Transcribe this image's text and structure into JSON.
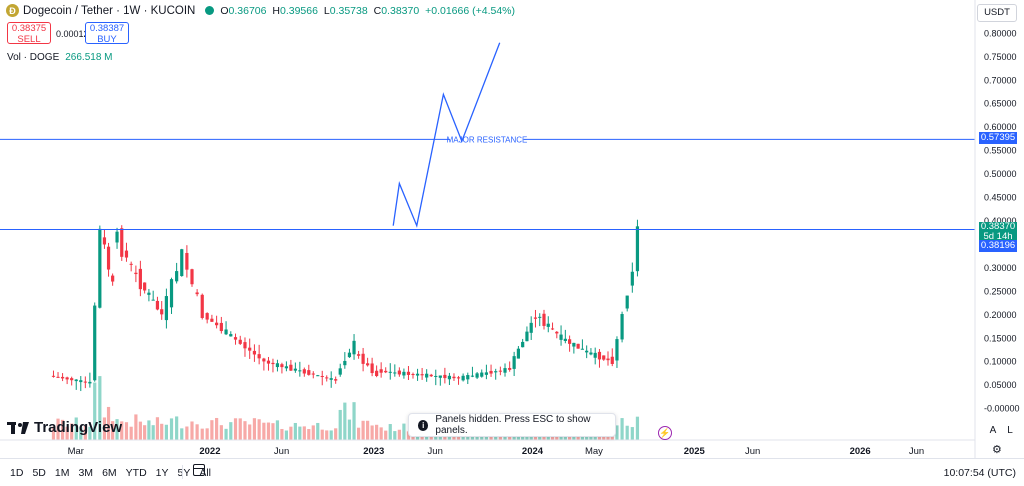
{
  "header": {
    "symbol": "Dogecoin / Tether · 1W · KUCOIN",
    "coin_letter": "Ð",
    "ohlc": [
      {
        "label": "O",
        "value": "0.36706"
      },
      {
        "label": "H",
        "value": "0.39566"
      },
      {
        "label": "L",
        "value": "0.35738"
      },
      {
        "label": "C",
        "value": "0.38370"
      }
    ],
    "change": "+0.01666 (+4.54%)"
  },
  "trade": {
    "sell_price": "0.38375",
    "sell_label": "SELL",
    "spread": "0.00012",
    "buy_price": "0.38387",
    "buy_label": "BUY"
  },
  "volume": {
    "label": "Vol · DOGE",
    "value": "266.518 M"
  },
  "currency_button": "USDT",
  "annotation": "MAJOR RESISTANCE",
  "price_tags": {
    "resistance": "0.57395",
    "last_price": "0.38370",
    "countdown": "5d 14h",
    "buy_price": "0.38196"
  },
  "logo": "TradingView",
  "toast": "Panels hidden. Press ESC to show panels.",
  "scale_buttons": {
    "auto": "A",
    "log": "L"
  },
  "timeframes": [
    "1D",
    "5D",
    "1M",
    "3M",
    "6M",
    "YTD",
    "1Y",
    "5Y",
    "All"
  ],
  "clock": "10:07:54 (UTC)",
  "colors": {
    "up": "#089981",
    "down": "#f23645",
    "line": "#2962ff",
    "vol_up": "#8fd6c9",
    "vol_down": "#f7a9a7"
  },
  "chart_data": {
    "type": "candlestick",
    "y_ticks": [
      "0.80000",
      "0.75000",
      "0.70000",
      "0.65000",
      "0.60000",
      "0.55000",
      "0.50000",
      "0.45000",
      "0.40000",
      "0.35000",
      "0.30000",
      "0.25000",
      "0.20000",
      "0.15000",
      "0.10000",
      "0.05000",
      "-0.00000"
    ],
    "x_ticks": [
      "Mar",
      "2022",
      "Jun",
      "2023",
      "Jun",
      "2024",
      "May",
      "2025",
      "Jun",
      "2026",
      "Jun"
    ],
    "ylim": [
      -0.02,
      0.82
    ],
    "horizontal_lines": [
      0.57395,
      0.382
    ],
    "projection": [
      [
        0.384,
        0.39
      ],
      [
        0.39,
        0.48
      ],
      [
        0.407,
        0.39
      ],
      [
        0.433,
        0.67
      ],
      [
        0.451,
        0.57
      ],
      [
        0.488,
        0.78
      ]
    ],
    "segments": [
      {
        "start": 0.05,
        "end": 0.09,
        "from": 0.07,
        "to": 0.055,
        "vol": 0.3
      },
      {
        "start": 0.09,
        "end": 0.1,
        "from": 0.06,
        "to": 0.38,
        "vol": 1.0
      },
      {
        "start": 0.1,
        "end": 0.112,
        "from": 0.38,
        "to": 0.26,
        "vol": 0.6
      },
      {
        "start": 0.112,
        "end": 0.135,
        "from": 0.38,
        "to": 0.28,
        "vol": 0.35
      },
      {
        "start": 0.135,
        "end": 0.16,
        "from": 0.28,
        "to": 0.2,
        "vol": 0.3
      },
      {
        "start": 0.16,
        "end": 0.18,
        "from": 0.2,
        "to": 0.33,
        "vol": 0.35
      },
      {
        "start": 0.18,
        "end": 0.2,
        "from": 0.33,
        "to": 0.2,
        "vol": 0.35
      },
      {
        "start": 0.2,
        "end": 0.26,
        "from": 0.2,
        "to": 0.1,
        "vol": 0.3
      },
      {
        "start": 0.26,
        "end": 0.33,
        "from": 0.1,
        "to": 0.06,
        "vol": 0.25
      },
      {
        "start": 0.33,
        "end": 0.348,
        "from": 0.07,
        "to": 0.14,
        "vol": 0.55
      },
      {
        "start": 0.348,
        "end": 0.37,
        "from": 0.12,
        "to": 0.07,
        "vol": 0.3
      },
      {
        "start": 0.37,
        "end": 0.45,
        "from": 0.08,
        "to": 0.065,
        "vol": 0.2
      },
      {
        "start": 0.45,
        "end": 0.5,
        "from": 0.065,
        "to": 0.085,
        "vol": 0.15
      },
      {
        "start": 0.5,
        "end": 0.525,
        "from": 0.09,
        "to": 0.2,
        "vol": 0.25
      },
      {
        "start": 0.525,
        "end": 0.55,
        "from": 0.2,
        "to": 0.15,
        "vol": 0.2
      },
      {
        "start": 0.55,
        "end": 0.575,
        "from": 0.15,
        "to": 0.12,
        "vol": 0.15
      },
      {
        "start": 0.575,
        "end": 0.6,
        "from": 0.12,
        "to": 0.1,
        "vol": 0.1
      },
      {
        "start": 0.6,
        "end": 0.62,
        "from": 0.1,
        "to": 0.3,
        "vol": 0.3
      },
      {
        "start": 0.62,
        "end": 0.625,
        "from": 0.3,
        "to": 0.384,
        "vol": 0.35
      }
    ]
  }
}
